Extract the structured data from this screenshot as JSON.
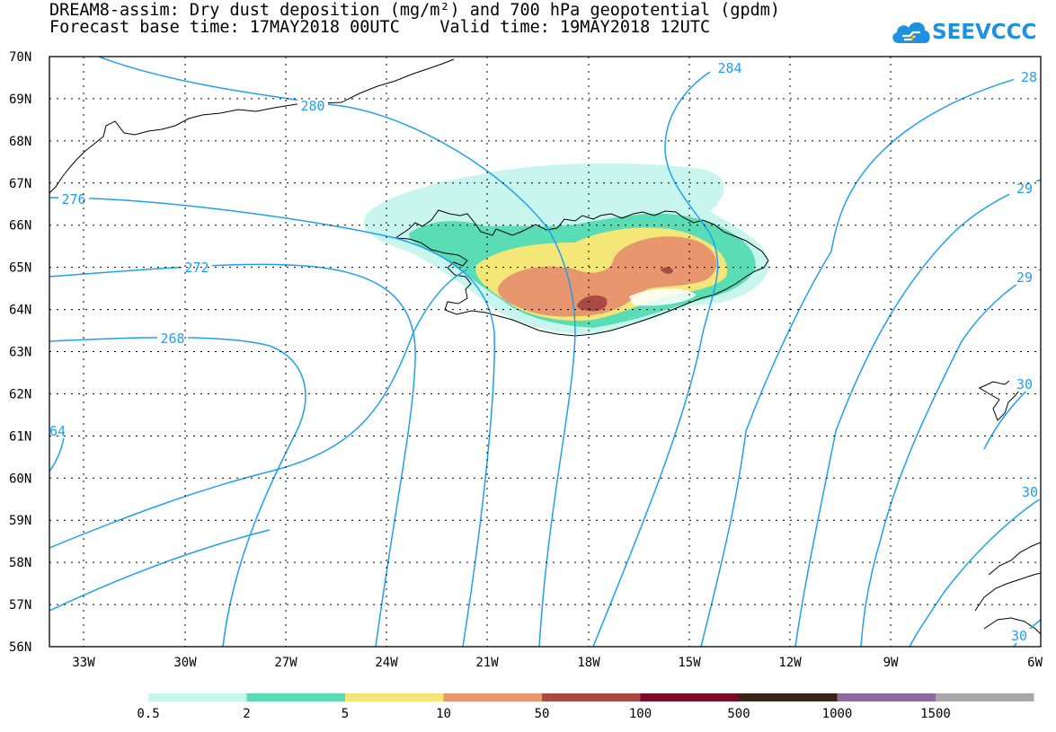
{
  "title": {
    "line1": "DREAM8-assim: Dry dust deposition (mg/m²) and 700 hPa geopotential (gpdm)",
    "line2": "Forecast base time: 17MAY2018 00UTC    Valid time: 19MAY2018 12UTC"
  },
  "logo": {
    "text": "SEEVCCC",
    "icon": "cloud-icon",
    "color": "#1e90e0"
  },
  "map": {
    "lat_labels": [
      "70N",
      "69N",
      "68N",
      "67N",
      "66N",
      "65N",
      "64N",
      "63N",
      "62N",
      "61N",
      "60N",
      "59N",
      "58N",
      "57N",
      "56N"
    ],
    "lon_labels": [
      "33W",
      "30W",
      "27W",
      "24W",
      "21W",
      "18W",
      "15W",
      "12W",
      "9W",
      "6W"
    ],
    "contour_color": "#1ea0f0",
    "contour_labels": [
      "280",
      "284",
      "28",
      "276",
      "29",
      "272",
      "29",
      "268",
      "30",
      "64",
      "30",
      "30"
    ],
    "colorbar": {
      "colors": [
        "#c8f5ee",
        "#5adcb4",
        "#f5e678",
        "#e8966e",
        "#aa4a44",
        "#7a0a2a",
        "#3a2418",
        "#8e6a9e",
        "#a8a8a8"
      ],
      "tick_labels": [
        "0.5",
        "2",
        "5",
        "10",
        "50",
        "100",
        "500",
        "1000",
        "1500"
      ]
    }
  }
}
